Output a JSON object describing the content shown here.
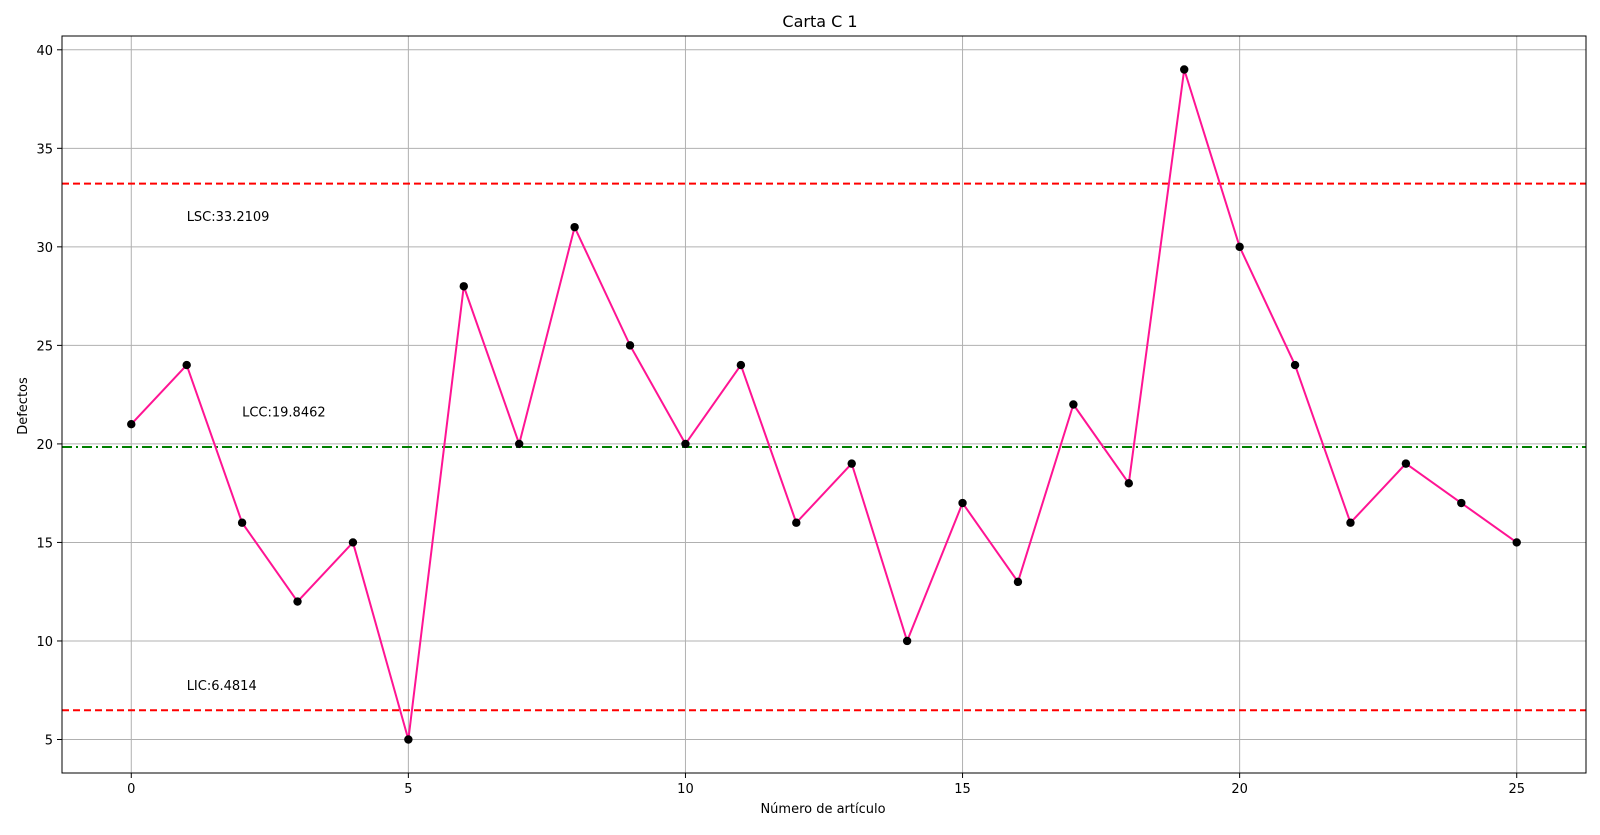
{
  "chart_data": {
    "type": "line",
    "title": "Carta C 1",
    "xlabel": "Número de artículo",
    "ylabel": "Defectos",
    "x": [
      0,
      1,
      2,
      3,
      4,
      5,
      6,
      7,
      8,
      9,
      10,
      11,
      12,
      13,
      14,
      15,
      16,
      17,
      18,
      19,
      20,
      21,
      22,
      23,
      24,
      25
    ],
    "series": [
      {
        "values": [
          21,
          24,
          16,
          12,
          15,
          5,
          28,
          20,
          31,
          25,
          20,
          24,
          16,
          19,
          10,
          17,
          13,
          22,
          18,
          39,
          30,
          24,
          16,
          19,
          17,
          15
        ],
        "line_color": "#ff1493",
        "marker_color": "#000000"
      }
    ],
    "xlim": [
      -1.25,
      26.25
    ],
    "ylim": [
      3.3,
      40.7
    ],
    "xticks": [
      0,
      5,
      10,
      15,
      20,
      25
    ],
    "yticks": [
      5,
      10,
      15,
      20,
      25,
      30,
      35,
      40
    ],
    "grid": true,
    "reference_lines": [
      {
        "value": 33.2109,
        "color": "#ff0000",
        "style": "dashed"
      },
      {
        "value": 19.8462,
        "color": "#008000",
        "style": "dashdot"
      },
      {
        "value": 6.4814,
        "color": "#ff0000",
        "style": "dashed"
      }
    ],
    "annotations": [
      {
        "text": "LSC:33.2109",
        "x": 1,
        "y": 31.3
      },
      {
        "text": "LCC:19.8462",
        "x": 2,
        "y": 21.4
      },
      {
        "text": "LIC:6.4814",
        "x": 1,
        "y": 7.5
      }
    ]
  }
}
